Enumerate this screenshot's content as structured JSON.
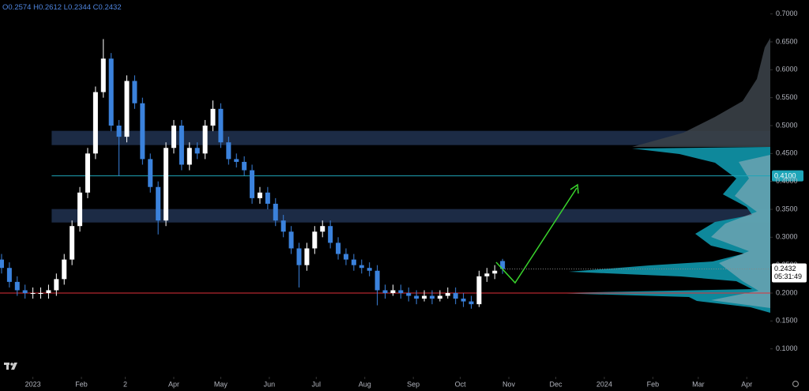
{
  "chart_data": {
    "type": "candlestick",
    "ohlc_keys": [
      "O",
      "H",
      "L",
      "C"
    ],
    "up_color": "#ffffff",
    "down_color": "#3b82dc",
    "candles": {
      "x": [
        -20,
        -15,
        -10,
        -5,
        0,
        5,
        10,
        15,
        20,
        25,
        30,
        35,
        40,
        45,
        50,
        55,
        60,
        65,
        70,
        75,
        80,
        85,
        90,
        95,
        100,
        105,
        110,
        115,
        120,
        125,
        130,
        135,
        140,
        145,
        150,
        155,
        160,
        165,
        170,
        175,
        180,
        185,
        190,
        195,
        200,
        205,
        210,
        215,
        220,
        225,
        230,
        235,
        240,
        245,
        250,
        255,
        260,
        265,
        270,
        275,
        280,
        285,
        290,
        295,
        300
      ],
      "open": [
        0.26,
        0.245,
        0.22,
        0.205,
        0.2,
        0.2,
        0.2,
        0.205,
        0.225,
        0.26,
        0.32,
        0.38,
        0.45,
        0.56,
        0.62,
        0.5,
        0.48,
        0.58,
        0.54,
        0.44,
        0.39,
        0.33,
        0.46,
        0.5,
        0.43,
        0.46,
        0.45,
        0.5,
        0.53,
        0.47,
        0.44,
        0.435,
        0.42,
        0.37,
        0.38,
        0.36,
        0.33,
        0.31,
        0.28,
        0.25,
        0.28,
        0.31,
        0.32,
        0.29,
        0.27,
        0.26,
        0.25,
        0.245,
        0.24,
        0.205,
        0.2,
        0.205,
        0.2,
        0.195,
        0.19,
        0.195,
        0.19,
        0.195,
        0.2,
        0.19,
        0.185,
        0.18,
        0.23,
        0.235,
        0.2574
      ],
      "high": [
        0.27,
        0.255,
        0.23,
        0.215,
        0.21,
        0.21,
        0.215,
        0.235,
        0.27,
        0.33,
        0.39,
        0.46,
        0.57,
        0.655,
        0.63,
        0.51,
        0.59,
        0.59,
        0.55,
        0.45,
        0.4,
        0.47,
        0.51,
        0.51,
        0.47,
        0.47,
        0.51,
        0.545,
        0.54,
        0.48,
        0.45,
        0.445,
        0.43,
        0.39,
        0.39,
        0.37,
        0.34,
        0.32,
        0.29,
        0.29,
        0.32,
        0.33,
        0.33,
        0.3,
        0.28,
        0.27,
        0.26,
        0.255,
        0.25,
        0.215,
        0.215,
        0.215,
        0.21,
        0.205,
        0.205,
        0.205,
        0.205,
        0.21,
        0.21,
        0.2,
        0.195,
        0.24,
        0.245,
        0.25,
        0.2612
      ],
      "low": [
        0.235,
        0.21,
        0.195,
        0.19,
        0.19,
        0.19,
        0.19,
        0.195,
        0.215,
        0.25,
        0.31,
        0.37,
        0.44,
        0.55,
        0.49,
        0.41,
        0.47,
        0.53,
        0.43,
        0.38,
        0.305,
        0.32,
        0.45,
        0.42,
        0.42,
        0.44,
        0.44,
        0.49,
        0.46,
        0.43,
        0.425,
        0.41,
        0.36,
        0.36,
        0.35,
        0.32,
        0.3,
        0.27,
        0.21,
        0.24,
        0.27,
        0.3,
        0.28,
        0.26,
        0.25,
        0.24,
        0.235,
        0.23,
        0.178,
        0.19,
        0.195,
        0.19,
        0.185,
        0.18,
        0.185,
        0.18,
        0.185,
        0.19,
        0.18,
        0.175,
        0.172,
        0.175,
        0.22,
        0.225,
        0.2344
      ],
      "close": [
        0.245,
        0.22,
        0.205,
        0.2,
        0.2,
        0.2,
        0.205,
        0.225,
        0.26,
        0.32,
        0.38,
        0.45,
        0.56,
        0.62,
        0.5,
        0.48,
        0.58,
        0.54,
        0.44,
        0.39,
        0.33,
        0.46,
        0.5,
        0.43,
        0.46,
        0.45,
        0.5,
        0.53,
        0.47,
        0.44,
        0.435,
        0.42,
        0.37,
        0.38,
        0.36,
        0.33,
        0.31,
        0.28,
        0.25,
        0.28,
        0.31,
        0.32,
        0.29,
        0.27,
        0.26,
        0.25,
        0.245,
        0.24,
        0.205,
        0.2,
        0.205,
        0.2,
        0.195,
        0.19,
        0.195,
        0.19,
        0.195,
        0.2,
        0.19,
        0.185,
        0.18,
        0.23,
        0.235,
        0.24,
        0.2432
      ]
    },
    "countdown": "05:31:49",
    "xlim": [
      -21,
      471
    ],
    "ylim": [
      0.05,
      0.725
    ],
    "xticks": [
      {
        "value": 0,
        "label": "2023"
      },
      {
        "value": 31,
        "label": "Feb"
      },
      {
        "value": 59,
        "label": "2"
      },
      {
        "value": 90,
        "label": "Apr"
      },
      {
        "value": 120,
        "label": "May"
      },
      {
        "value": 151,
        "label": "Jun"
      },
      {
        "value": 181,
        "label": "Jul"
      },
      {
        "value": 212,
        "label": "Aug"
      },
      {
        "value": 243,
        "label": "Sep"
      },
      {
        "value": 273,
        "label": "Oct"
      },
      {
        "value": 304,
        "label": "Nov"
      },
      {
        "value": 334,
        "label": "Dec"
      },
      {
        "value": 365,
        "label": "2024"
      },
      {
        "value": 396,
        "label": "Feb"
      },
      {
        "value": 425,
        "label": "Mar"
      },
      {
        "value": 456,
        "label": "Apr"
      }
    ],
    "yticks": [
      {
        "value": 0.1,
        "label": "0.1000"
      },
      {
        "value": 0.15,
        "label": "0.1500"
      },
      {
        "value": 0.2,
        "label": "0.2000"
      },
      {
        "value": 0.25,
        "label": "0.2500"
      },
      {
        "value": 0.3,
        "label": "0.3000"
      },
      {
        "value": 0.35,
        "label": "0.3500"
      },
      {
        "value": 0.4,
        "label": "0.4000"
      },
      {
        "value": 0.45,
        "label": "0.4500"
      },
      {
        "value": 0.5,
        "label": "0.5000"
      },
      {
        "value": 0.55,
        "label": "0.5500"
      },
      {
        "value": 0.6,
        "label": "0.6000"
      },
      {
        "value": 0.65,
        "label": "0.6500"
      },
      {
        "value": 0.7,
        "label": "0.7000"
      }
    ],
    "zones": [
      {
        "x0": 12,
        "y0": 0.4651,
        "y1": 0.4906,
        "color": "#1c2b45"
      },
      {
        "x0": 12,
        "y0": 0.3264,
        "y1": 0.3505,
        "color": "#1c2b45"
      }
    ],
    "levels": [
      {
        "x0": 12,
        "value": 0.41,
        "label": "0.4100",
        "color": "#1ea5b8"
      },
      {
        "x0": -21,
        "value": 0.2,
        "color": "#e0303a"
      }
    ]
  }
}
